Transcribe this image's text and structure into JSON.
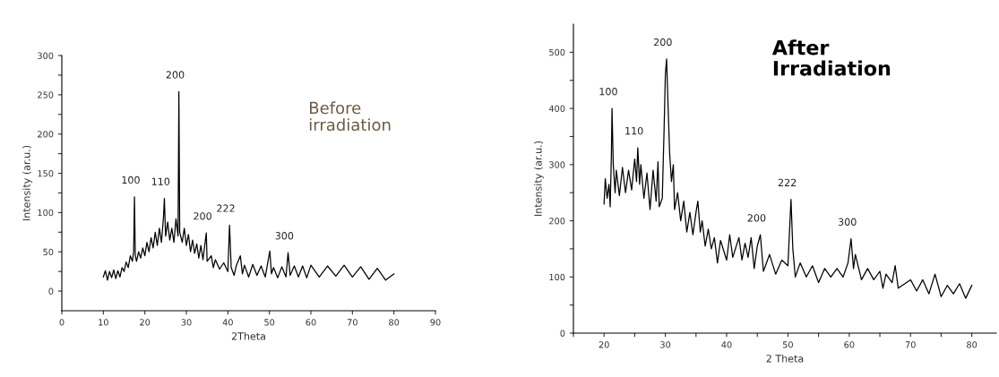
{
  "chart_data": [
    {
      "type": "line",
      "title": "Before irradiation",
      "xlabel": "2Theta",
      "ylabel": "Intensity (ar.u.)",
      "xlim": [
        0,
        90
      ],
      "ylim": [
        -25,
        300
      ],
      "xticks": [
        0,
        10,
        20,
        30,
        40,
        50,
        60,
        70,
        80,
        90
      ],
      "yticks": [
        0,
        {
          "value": 25,
          "label": null
        },
        50,
        {
          "value": 75,
          "label": null
        },
        100,
        {
          "value": 125,
          "label": null
        },
        150,
        {
          "value": 175,
          "label": null
        },
        200,
        {
          "value": 225,
          "label": null
        },
        250,
        {
          "value": 275,
          "label": null
        },
        300
      ],
      "grid": false,
      "marker": "none",
      "line_style": "solid",
      "annotations": [
        {
          "text": "100",
          "x": 17.5,
          "y": 120
        },
        {
          "text": "110",
          "x": 24.7,
          "y": 118
        },
        {
          "text": "200",
          "x": 28.2,
          "y": 254
        },
        {
          "text": "200",
          "x": 34.8,
          "y": 74
        },
        {
          "text": "222",
          "x": 40.4,
          "y": 84
        },
        {
          "text": "300",
          "x": 54.5,
          "y": 49
        }
      ],
      "series": [
        {
          "color": "#000000",
          "x": [
            10,
            10.5,
            11,
            11.5,
            12,
            12.5,
            13,
            13.5,
            14,
            14.5,
            15,
            15.5,
            16,
            16.5,
            17,
            17.3,
            17.5,
            17.7,
            18,
            18.5,
            19,
            19.5,
            20,
            20.5,
            21,
            21.5,
            22,
            22.5,
            23,
            23.5,
            24,
            24.5,
            24.7,
            25,
            25.5,
            26,
            26.5,
            27,
            27.5,
            28,
            28.2,
            28.4,
            29,
            29.5,
            30,
            30.5,
            31,
            31.5,
            32,
            32.5,
            33,
            33.5,
            34,
            34.8,
            35,
            36,
            36.5,
            37,
            38,
            39,
            40,
            40.4,
            40.8,
            41.5,
            42,
            43,
            43.5,
            44,
            45,
            46,
            47,
            48,
            49,
            50.1,
            50.5,
            51,
            52,
            53,
            54,
            54.5,
            55,
            56,
            57,
            58,
            59,
            60,
            62,
            64,
            66,
            68,
            70,
            72,
            74,
            76,
            78,
            80
          ],
          "values": [
            18,
            26,
            14,
            25,
            17,
            27,
            16,
            26,
            18,
            30,
            25,
            37,
            30,
            45,
            38,
            50,
            120,
            45,
            38,
            50,
            42,
            55,
            45,
            62,
            50,
            68,
            55,
            75,
            58,
            80,
            62,
            95,
            118,
            70,
            88,
            65,
            80,
            62,
            92,
            70,
            254,
            75,
            62,
            80,
            58,
            72,
            50,
            65,
            48,
            60,
            42,
            58,
            40,
            74,
            38,
            45,
            30,
            40,
            28,
            36,
            25,
            84,
            30,
            20,
            32,
            45,
            22,
            33,
            18,
            34,
            20,
            32,
            18,
            51,
            22,
            30,
            17,
            31,
            18,
            49,
            20,
            32,
            18,
            32,
            17,
            33,
            18,
            32,
            19,
            33,
            18,
            31,
            15,
            29,
            14,
            22
          ]
        }
      ]
    },
    {
      "type": "line",
      "title": "After Irradiation",
      "xlabel": "2 Theta",
      "ylabel": "Intensity (ar.u.)",
      "xlim": [
        15,
        84
      ],
      "ylim": [
        0,
        550
      ],
      "xticks": [
        {
          "value": 15,
          "label": null
        },
        20,
        {
          "value": 25,
          "label": null
        },
        30,
        {
          "value": 35,
          "label": null
        },
        40,
        {
          "value": 45,
          "label": null
        },
        50,
        {
          "value": 55,
          "label": null
        },
        60,
        {
          "value": 65,
          "label": null
        },
        70,
        {
          "value": 75,
          "label": null
        },
        80
      ],
      "yticks": [
        0,
        {
          "value": 50,
          "label": null
        },
        100,
        {
          "value": 150,
          "label": null
        },
        200,
        {
          "value": 250,
          "label": null
        },
        300,
        {
          "value": 350,
          "label": null
        },
        400,
        {
          "value": 450,
          "label": null
        },
        500
      ],
      "grid": false,
      "marker": "none",
      "line_style": "solid",
      "annotations": [
        {
          "text": "100",
          "x": 21.3,
          "y": 400
        },
        {
          "text": "110",
          "x": 25.5,
          "y": 330
        },
        {
          "text": "200",
          "x": 30.2,
          "y": 488
        },
        {
          "text": "200",
          "x": 45.5,
          "y": 175
        },
        {
          "text": "222",
          "x": 50.5,
          "y": 238
        },
        {
          "text": "300",
          "x": 60.3,
          "y": 168
        }
      ],
      "series": [
        {
          "color": "#000000",
          "x": [
            20,
            20.2,
            20.5,
            20.8,
            21,
            21.2,
            21.3,
            21.5,
            21.8,
            22,
            22.5,
            23,
            23.5,
            24,
            24.5,
            25,
            25.3,
            25.5,
            25.8,
            26,
            26.5,
            27,
            27.5,
            28,
            28.5,
            28.8,
            29,
            29.5,
            29.8,
            30,
            30.2,
            30.4,
            30.7,
            31,
            31.3,
            31.5,
            32,
            32.5,
            33,
            33.5,
            34,
            34.5,
            35,
            35.3,
            35.7,
            36,
            36.5,
            37,
            37.5,
            38,
            38.5,
            39,
            40,
            40.5,
            41,
            42,
            42.5,
            43,
            43.5,
            44,
            44.5,
            45,
            45.5,
            46,
            47,
            48,
            49,
            50,
            50.5,
            50.8,
            51.2,
            52,
            53,
            54,
            55,
            56,
            57,
            58,
            59,
            59.8,
            60.3,
            60.7,
            61,
            62,
            63,
            64,
            65,
            65.5,
            66,
            67,
            67.5,
            68,
            70,
            71,
            72,
            73,
            74,
            75,
            76,
            77,
            78,
            79,
            80
          ],
          "values": [
            230,
            275,
            240,
            265,
            225,
            320,
            400,
            300,
            250,
            290,
            245,
            295,
            250,
            290,
            255,
            310,
            270,
            330,
            265,
            300,
            240,
            285,
            220,
            290,
            235,
            305,
            225,
            240,
            365,
            460,
            488,
            420,
            320,
            270,
            300,
            220,
            250,
            200,
            235,
            180,
            215,
            175,
            215,
            235,
            180,
            200,
            155,
            185,
            150,
            170,
            125,
            165,
            130,
            175,
            135,
            170,
            130,
            160,
            135,
            170,
            115,
            155,
            175,
            110,
            140,
            105,
            130,
            120,
            238,
            150,
            100,
            125,
            100,
            120,
            90,
            115,
            100,
            115,
            100,
            125,
            168,
            115,
            140,
            95,
            115,
            95,
            110,
            80,
            105,
            90,
            120,
            80,
            95,
            75,
            95,
            70,
            105,
            65,
            85,
            70,
            88,
            62,
            85
          ]
        }
      ]
    }
  ]
}
